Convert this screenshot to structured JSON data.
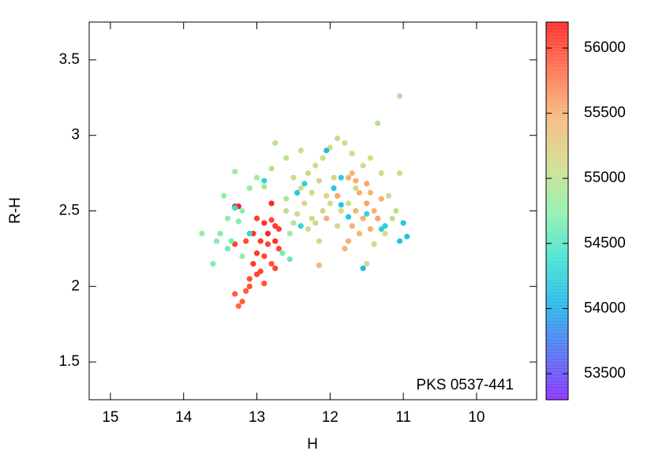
{
  "chart_data": {
    "type": "scatter",
    "xlabel": "H",
    "ylabel": "R-H",
    "annotation": "PKS 0537-441",
    "xlim": [
      15.29,
      9.18
    ],
    "ylim": [
      1.25,
      3.75
    ],
    "xticks": [
      15,
      14,
      13,
      12,
      11,
      10
    ],
    "yticks": [
      1.5,
      2,
      2.5,
      3,
      3.5
    ],
    "clim": [
      53300,
      56200
    ],
    "cticks": [
      53500,
      54000,
      54500,
      55000,
      55500,
      56000
    ],
    "colormap": [
      "#8020ff",
      "#4a68f2",
      "#18b2e8",
      "#3ae0d0",
      "#8cf0a8",
      "#d0dc88",
      "#f6b474",
      "#ff6a44",
      "#ff1a1a"
    ],
    "x": [
      13.3,
      13.25,
      13.0,
      12.9,
      12.8,
      13.05,
      12.95,
      12.85,
      12.75,
      12.7,
      13.0,
      12.9,
      12.8,
      12.75,
      13.05,
      12.95,
      13.1,
      12.9,
      13.0,
      13.1,
      13.15,
      13.2,
      13.25,
      13.3,
      12.85,
      12.7,
      13.15,
      12.8,
      12.75,
      13.3,
      13.75,
      13.6,
      13.5,
      13.45,
      13.3,
      13.4,
      13.55,
      13.35,
      13.2,
      13.1,
      13.0,
      12.9,
      12.6,
      12.55,
      12.5,
      13.25,
      13.4,
      12.65,
      12.55,
      13.2,
      12.75,
      12.6,
      12.3,
      12.2,
      12.1,
      12.0,
      11.9,
      11.8,
      11.7,
      12.4,
      12.25,
      12.15,
      12.05,
      11.95,
      11.85,
      12.35,
      12.45,
      12.25,
      12.1,
      12.2,
      12.3,
      12.15,
      12.0,
      11.9,
      11.75,
      11.65,
      11.55,
      11.45,
      11.35,
      11.05,
      11.3,
      11.2,
      11.1,
      11.25,
      11.5,
      11.4,
      12.5,
      12.6,
      12.8,
      11.05,
      11.15,
      12.4,
      11.75,
      11.6,
      11.5,
      11.65,
      11.55,
      11.7,
      11.6,
      11.75,
      11.8,
      11.4,
      11.35,
      11.45,
      11.3,
      11.5,
      11.65,
      11.9,
      12.05,
      11.7,
      12.15,
      11.45,
      11.0,
      10.95,
      11.05,
      11.3,
      11.55,
      11.85,
      11.95,
      12.05,
      11.85,
      12.35,
      12.45,
      12.9,
      13.3,
      13.1,
      12.4,
      11.5,
      11.25,
      11.75
    ],
    "y": [
      2.53,
      2.53,
      2.45,
      2.42,
      2.44,
      2.35,
      2.3,
      2.28,
      2.3,
      2.25,
      2.22,
      2.2,
      2.15,
      2.12,
      2.15,
      2.1,
      2.05,
      2.02,
      2.08,
      2.0,
      1.97,
      1.9,
      1.87,
      1.95,
      2.35,
      2.38,
      2.3,
      2.55,
      2.4,
      2.28,
      2.35,
      2.15,
      2.35,
      2.6,
      2.76,
      2.45,
      2.3,
      2.3,
      2.5,
      2.65,
      2.72,
      2.66,
      2.58,
      2.35,
      2.42,
      2.43,
      2.25,
      2.22,
      2.18,
      2.2,
      2.95,
      2.85,
      2.75,
      2.8,
      2.85,
      2.92,
      2.98,
      2.95,
      2.88,
      2.65,
      2.62,
      2.7,
      2.6,
      2.72,
      2.5,
      2.55,
      2.48,
      2.45,
      2.5,
      2.42,
      2.38,
      2.3,
      2.55,
      2.4,
      2.55,
      2.65,
      2.8,
      2.85,
      3.08,
      3.26,
      2.75,
      2.6,
      2.5,
      2.35,
      2.15,
      2.28,
      2.72,
      2.5,
      2.78,
      2.75,
      2.45,
      2.9,
      2.72,
      2.62,
      2.55,
      2.5,
      2.45,
      2.4,
      2.35,
      2.3,
      2.25,
      2.5,
      2.45,
      2.38,
      2.58,
      2.68,
      2.7,
      2.6,
      2.45,
      2.75,
      2.14,
      2.62,
      2.42,
      2.33,
      2.3,
      2.38,
      2.12,
      2.54,
      2.65,
      2.9,
      2.72,
      2.68,
      2.62,
      2.7,
      2.52,
      2.35,
      2.4,
      2.48,
      2.4,
      2.46
    ],
    "c": [
      56150,
      56150,
      56050,
      56100,
      56000,
      56100,
      56050,
      56000,
      56100,
      56000,
      56050,
      56000,
      55950,
      56000,
      56050,
      56000,
      55950,
      55950,
      56000,
      55950,
      55900,
      55900,
      55850,
      55900,
      56150,
      56050,
      55950,
      56150,
      56050,
      56000,
      54800,
      54700,
      54700,
      54800,
      54800,
      54750,
      54700,
      54650,
      54800,
      54850,
      54900,
      54900,
      54900,
      54850,
      54900,
      54700,
      54650,
      54650,
      54600,
      54750,
      55000,
      55000,
      55150,
      55150,
      55100,
      55100,
      55150,
      55150,
      55100,
      55150,
      55100,
      55200,
      55150,
      55150,
      55100,
      55150,
      55100,
      55150,
      55200,
      55150,
      55100,
      55050,
      55100,
      55150,
      55100,
      55150,
      55100,
      55100,
      55000,
      54950,
      55050,
      55050,
      55050,
      55100,
      55100,
      55100,
      55100,
      55050,
      54950,
      55000,
      55050,
      55100,
      55500,
      55500,
      55550,
      55450,
      55500,
      55500,
      55450,
      55500,
      55450,
      55500,
      55550,
      55500,
      55500,
      55550,
      55500,
      55550,
      55500,
      55450,
      55450,
      55450,
      54200,
      54150,
      54200,
      54250,
      54100,
      54200,
      54200,
      54100,
      54250,
      54250,
      54200,
      54300,
      54350,
      54300,
      54300,
      54300,
      54250,
      54200
    ]
  }
}
